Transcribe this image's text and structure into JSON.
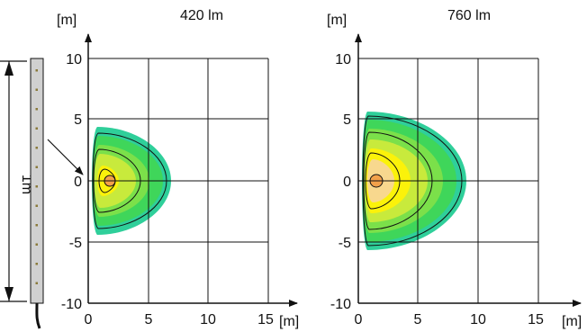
{
  "fixture": {
    "length_label": "1m"
  },
  "plots": [
    {
      "title": "420  lm",
      "y_unit_label": "[m]",
      "x_unit_label": "[m]",
      "x_ticks": [
        "0",
        "5",
        "10",
        "15"
      ],
      "y_ticks": [
        "10",
        "5",
        "0",
        "-5",
        "-10"
      ]
    },
    {
      "title": "760  lm",
      "y_unit_label": "[m]",
      "x_unit_label": "[m]",
      "x_ticks": [
        "0",
        "5",
        "10",
        "15"
      ],
      "y_ticks": [
        "10",
        "5",
        "0",
        "-5",
        "-10"
      ]
    }
  ],
  "colors": {
    "teal": "#2fcf9a",
    "green_mid": "#3fd65a",
    "green_light": "#7be04a",
    "yellow_green": "#c8ea3c",
    "yellow": "#fbf20a",
    "peach": "#f8d88e",
    "orange_center": "#f2a14a",
    "fixture_fill": "#d0d0d0"
  }
}
